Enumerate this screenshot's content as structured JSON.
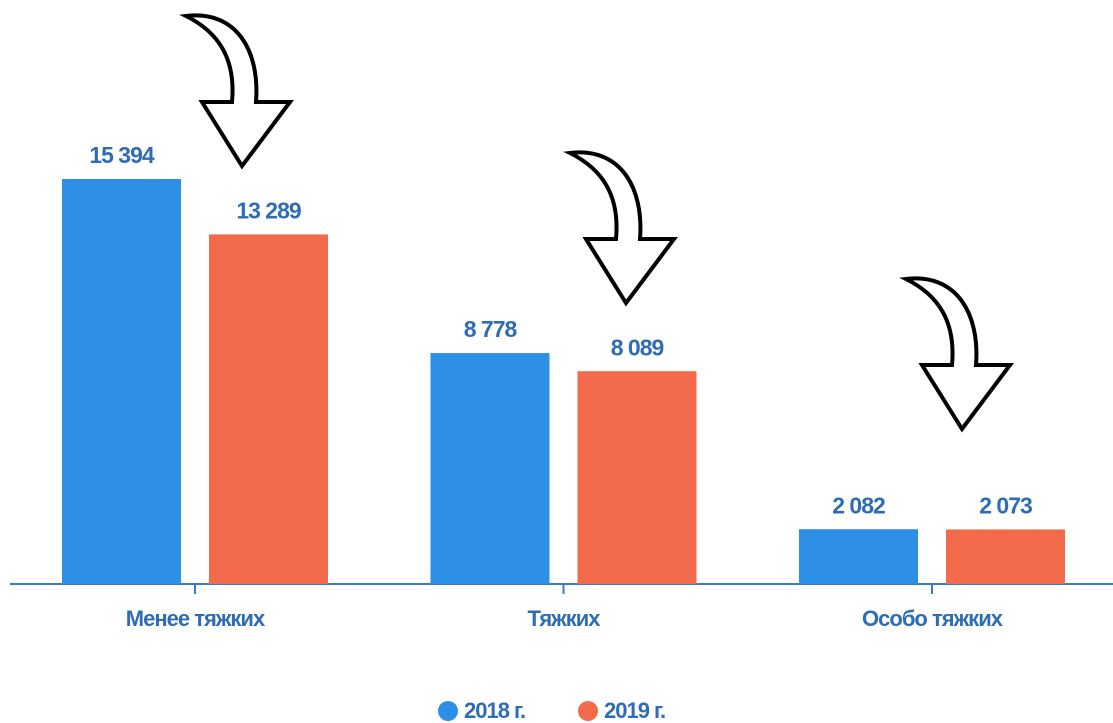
{
  "chart_data": {
    "type": "bar",
    "categories": [
      "Менее тяжких",
      "Тяжких",
      "Особо тяжких"
    ],
    "series": [
      {
        "name": "2018 г.",
        "color": "#2e8fe6",
        "values": [
          15394,
          8778,
          2082
        ],
        "value_labels": [
          "15 394",
          "8 778",
          "2 082"
        ]
      },
      {
        "name": "2019 г.",
        "color": "#f46b4c",
        "values": [
          13289,
          8089,
          2073
        ],
        "value_labels": [
          "13 289",
          "8 089",
          "2 073"
        ]
      }
    ]
  }
}
